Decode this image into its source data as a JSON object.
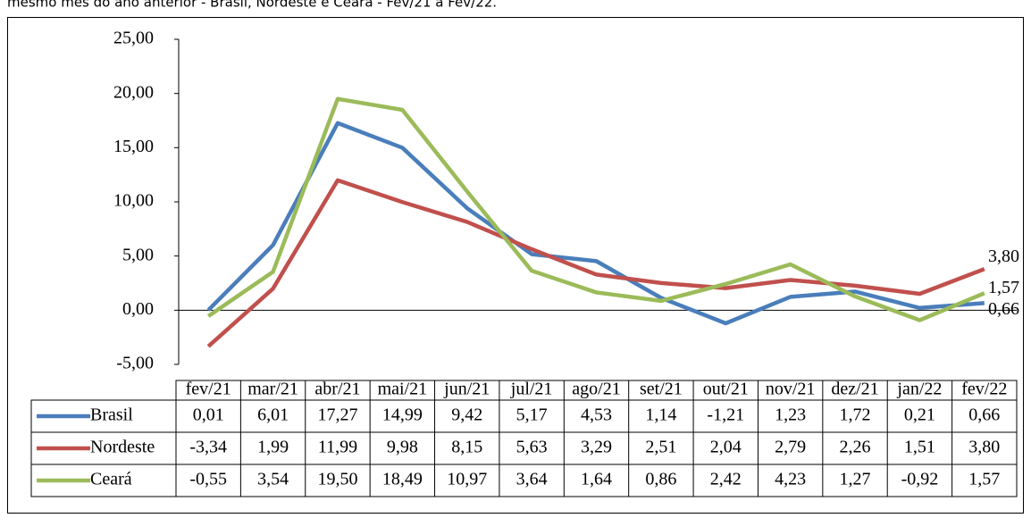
{
  "chart_data": {
    "type": "line",
    "title": "mesmo mês do ano anterior - Brasil, Nordeste e Ceará - Fev/21 a Fev/22.",
    "categories": [
      "fev/21",
      "mar/21",
      "abr/21",
      "mai/21",
      "jun/21",
      "jul/21",
      "ago/21",
      "set/21",
      "out/21",
      "nov/21",
      "dez/21",
      "jan/22",
      "fev/22"
    ],
    "ylim": [
      -5,
      25
    ],
    "yticks": [
      {
        "value": -5,
        "label": "-5,00"
      },
      {
        "value": 0,
        "label": "0,00"
      },
      {
        "value": 5,
        "label": "5,00"
      },
      {
        "value": 10,
        "label": "10,00"
      },
      {
        "value": 15,
        "label": "15,00"
      },
      {
        "value": 20,
        "label": "20,00"
      },
      {
        "value": 25,
        "label": "25,00"
      }
    ],
    "series": [
      {
        "name": "Brasil",
        "color": "#4a7ebb",
        "values": [
          0.01,
          6.01,
          17.27,
          14.99,
          9.42,
          5.17,
          4.53,
          1.14,
          -1.21,
          1.23,
          1.72,
          0.21,
          0.66
        ],
        "value_labels": [
          "0,01",
          "6,01",
          "17,27",
          "14,99",
          "9,42",
          "5,17",
          "4,53",
          "1,14",
          "-1,21",
          "1,23",
          "1,72",
          "0,21",
          "0,66"
        ]
      },
      {
        "name": "Nordeste",
        "color": "#c0504d",
        "values": [
          -3.34,
          1.99,
          11.99,
          9.98,
          8.15,
          5.63,
          3.29,
          2.51,
          2.04,
          2.79,
          2.26,
          1.51,
          3.8
        ],
        "value_labels": [
          "-3,34",
          "1,99",
          "11,99",
          "9,98",
          "8,15",
          "5,63",
          "3,29",
          "2,51",
          "2,04",
          "2,79",
          "2,26",
          "1,51",
          "3,80"
        ]
      },
      {
        "name": "Ceará",
        "color": "#9bbb59",
        "values": [
          -0.55,
          3.54,
          19.5,
          18.49,
          10.97,
          3.64,
          1.64,
          0.86,
          2.42,
          4.23,
          1.27,
          -0.92,
          1.57
        ],
        "value_labels": [
          "-0,55",
          "3,54",
          "19,50",
          "18,49",
          "10,97",
          "3,64",
          "1,64",
          "0,86",
          "2,42",
          "4,23",
          "1,27",
          "-0,92",
          "1,57"
        ]
      }
    ]
  }
}
